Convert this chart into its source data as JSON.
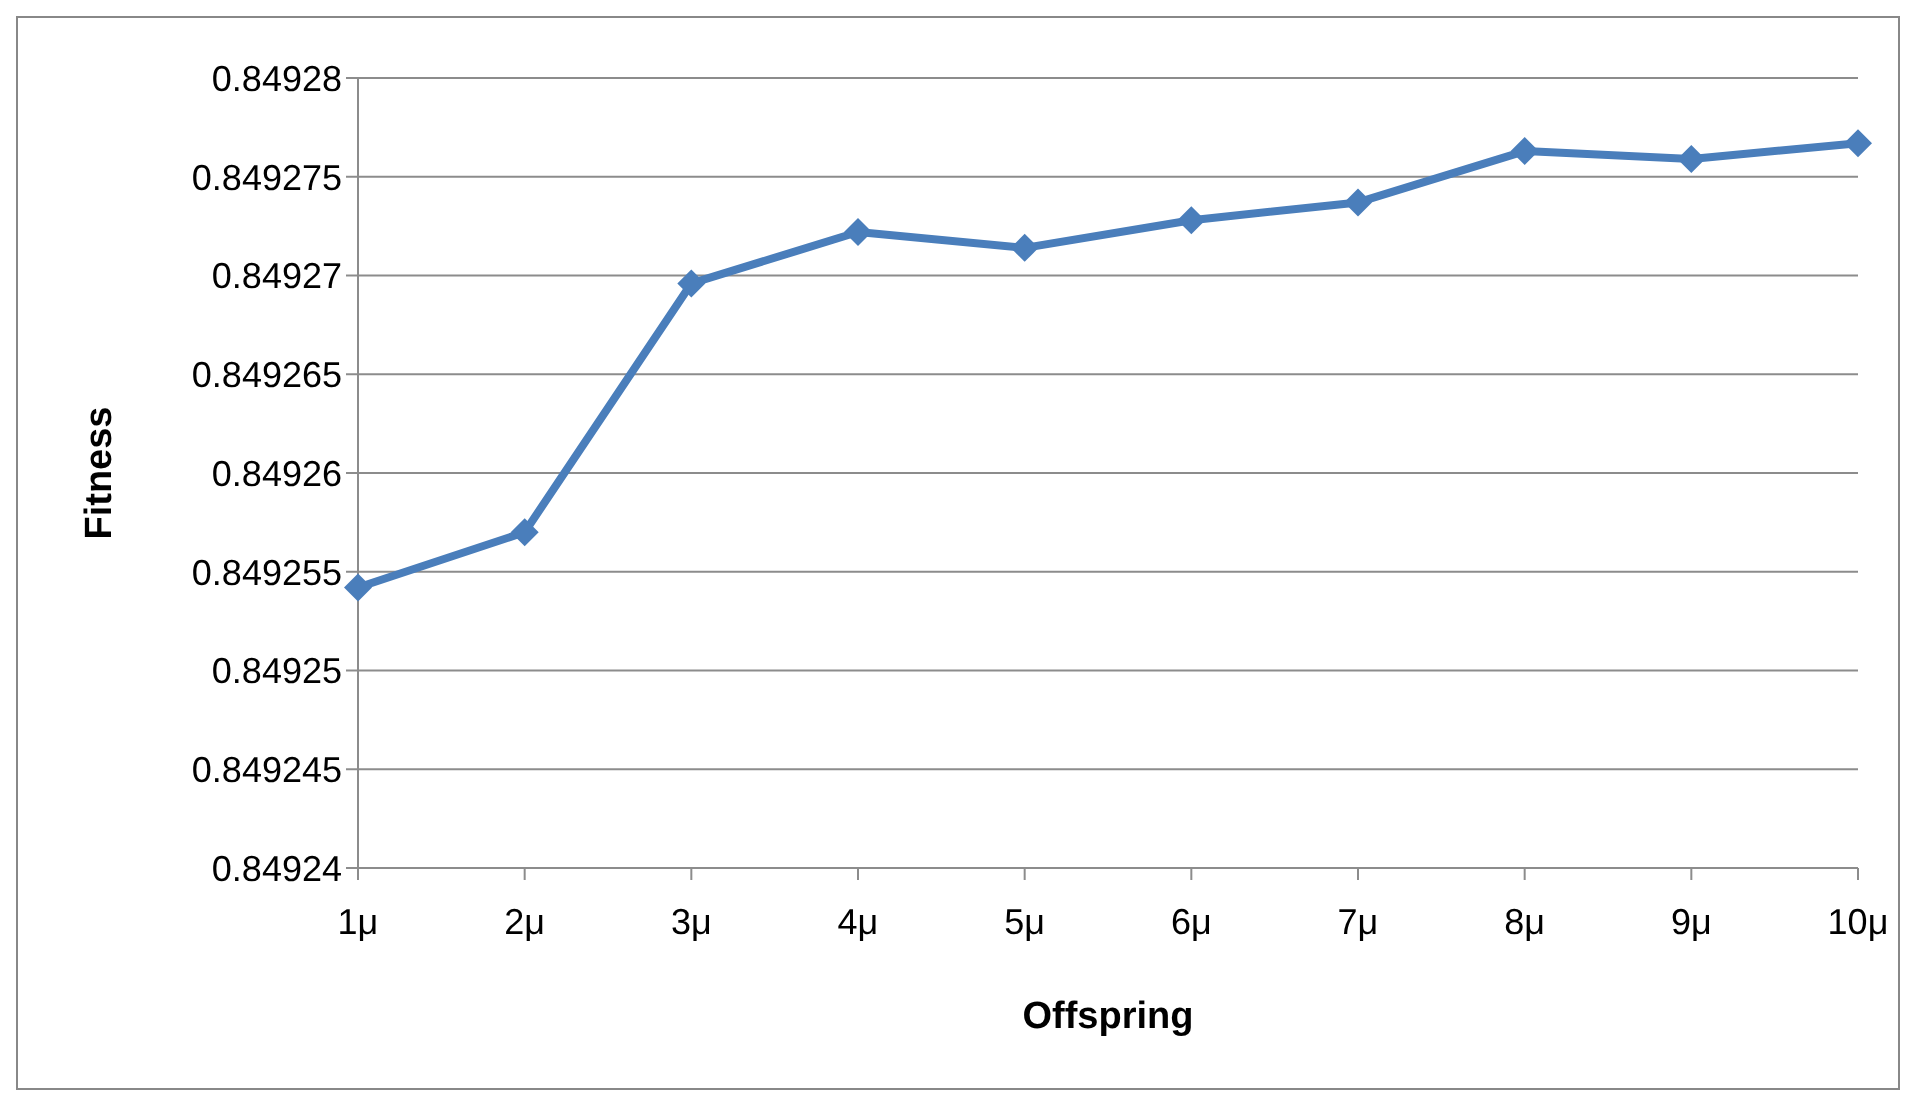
{
  "chart_data": {
    "type": "line",
    "xlabel": "Offspring",
    "ylabel": "Fitness",
    "categories": [
      "1μ",
      "2μ",
      "3μ",
      "4μ",
      "5μ",
      "6μ",
      "7μ",
      "8μ",
      "9μ",
      "10μ"
    ],
    "series": [
      {
        "color": "#4a7ebb",
        "values": [
          0.8492542,
          0.849257,
          0.8492696,
          0.8492722,
          0.8492714,
          0.8492728,
          0.8492737,
          0.8492763,
          0.8492759,
          0.8492767
        ]
      }
    ],
    "ylim": [
      0.84924,
      0.84928
    ],
    "yticks": [
      0.84924,
      0.849245,
      0.84925,
      0.849255,
      0.84926,
      0.849265,
      0.84927,
      0.849275,
      0.84928
    ],
    "grid": "y",
    "legend": false,
    "marker": "diamond",
    "line_style": "solid"
  }
}
